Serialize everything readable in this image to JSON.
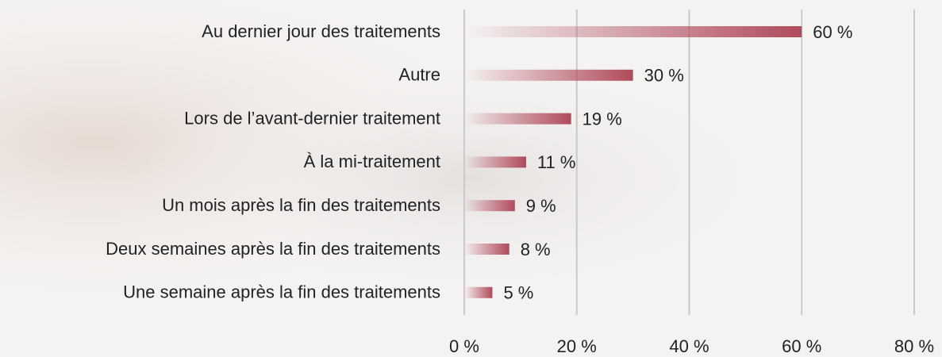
{
  "chart_data": {
    "type": "bar",
    "orientation": "horizontal",
    "categories": [
      "Au dernier jour des traitements",
      "Autre",
      "Lors de l’avant-dernier traitement",
      "À la mi-traitement",
      "Un mois après la fin des traitements",
      "Deux semaines après la fin des traitements",
      "Une semaine après la fin des traitements"
    ],
    "values": [
      60,
      30,
      19,
      11,
      9,
      8,
      5
    ],
    "value_labels": [
      "60 %",
      "30 %",
      "19 %",
      "11 %",
      "9 %",
      "8 %",
      "5 %"
    ],
    "color": "#b04a5a",
    "xlim": [
      0,
      80
    ],
    "xticks": [
      {
        "value": 0,
        "label": "0 %"
      },
      {
        "value": 20,
        "label": "20 %"
      },
      {
        "value": 40,
        "label": "40 %"
      },
      {
        "value": 60,
        "label": "60 %"
      },
      {
        "value": 80,
        "label": "80 %"
      }
    ],
    "grid": true
  }
}
